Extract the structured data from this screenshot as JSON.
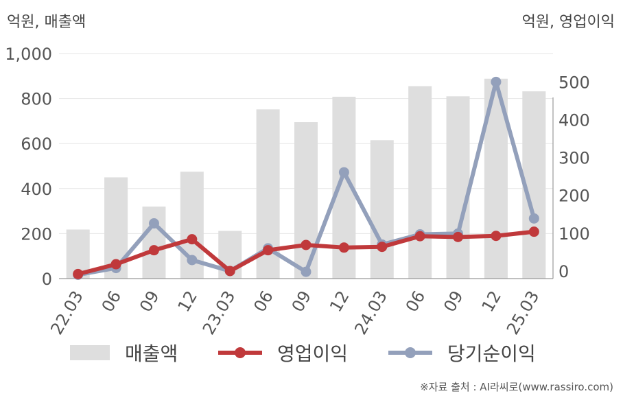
{
  "unit_left": "억원, 매출액",
  "unit_right": "억원, 영업이익",
  "source": "※자료 출처 : AI라씨로(www.rassiro.com)",
  "colors": {
    "bar": "#dedede",
    "operating": "#c0393b",
    "net": "#93a0bb",
    "grid": "#e6e6e6",
    "axis": "#999999"
  },
  "chart_data": {
    "type": "bar+line",
    "categories": [
      "22.03",
      "06",
      "09",
      "12",
      "23.03",
      "06",
      "09",
      "12",
      "24.03",
      "06",
      "09",
      "12",
      "25.03"
    ],
    "left_axis": {
      "ylim": [
        0,
        1000
      ],
      "ticks": [
        0,
        200,
        400,
        600,
        800,
        1000
      ],
      "tick_labels": [
        "0",
        "200",
        "400",
        "600",
        "800",
        "1,000"
      ]
    },
    "right_axis": {
      "ylim": [
        -20,
        575
      ],
      "ticks": [
        0,
        100,
        200,
        300,
        400,
        500
      ],
      "tick_labels": [
        "0",
        "100",
        "200",
        "300",
        "400",
        "500"
      ]
    },
    "grid": true,
    "legend_position": "bottom",
    "series": [
      {
        "name": "매출액",
        "type": "bar",
        "axis": "left",
        "values": [
          218,
          450,
          320,
          475,
          212,
          752,
          695,
          808,
          615,
          855,
          810,
          888,
          832
        ]
      },
      {
        "name": "영업이익",
        "type": "line",
        "axis": "right",
        "values": [
          -8,
          18,
          55,
          84,
          0,
          55,
          69,
          62,
          64,
          92,
          90,
          93,
          104
        ]
      },
      {
        "name": "당기순이익",
        "type": "line",
        "axis": "right",
        "values": [
          -10,
          8,
          126,
          29,
          0,
          60,
          -2,
          261,
          70,
          97,
          99,
          500,
          139
        ]
      }
    ]
  }
}
